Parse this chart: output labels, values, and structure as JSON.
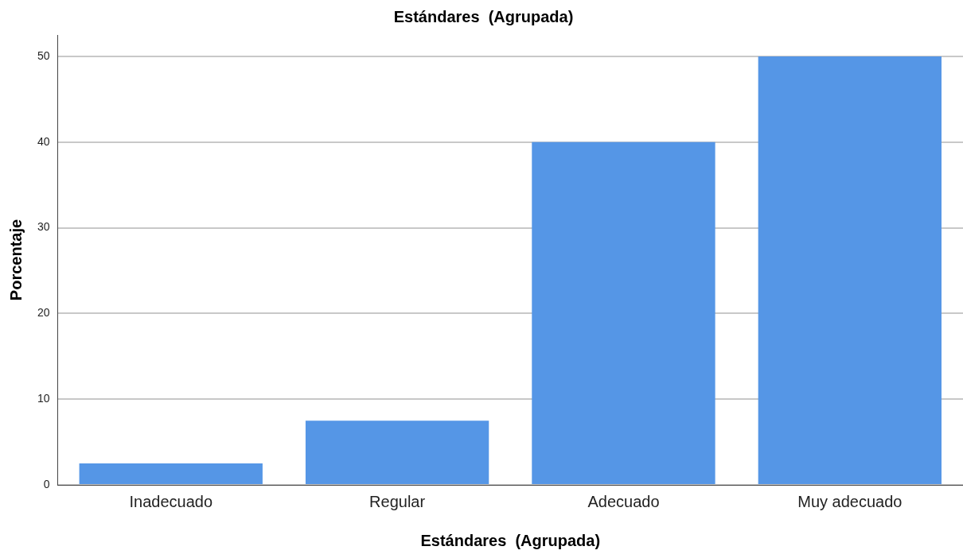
{
  "chart_data": {
    "type": "bar",
    "title": "Estándares  (Agrupada)",
    "xlabel": "Estándares  (Agrupada)",
    "ylabel": "Porcentaje",
    "categories": [
      "Inadecuado",
      "Regular",
      "Adecuado",
      "Muy adecuado"
    ],
    "values": [
      2.5,
      7.5,
      40,
      50
    ],
    "color": "#5596e6",
    "ylim": [
      0,
      52.5
    ],
    "yticks": [
      0,
      10,
      20,
      30,
      40,
      50
    ],
    "grid": "y",
    "legend": false
  }
}
